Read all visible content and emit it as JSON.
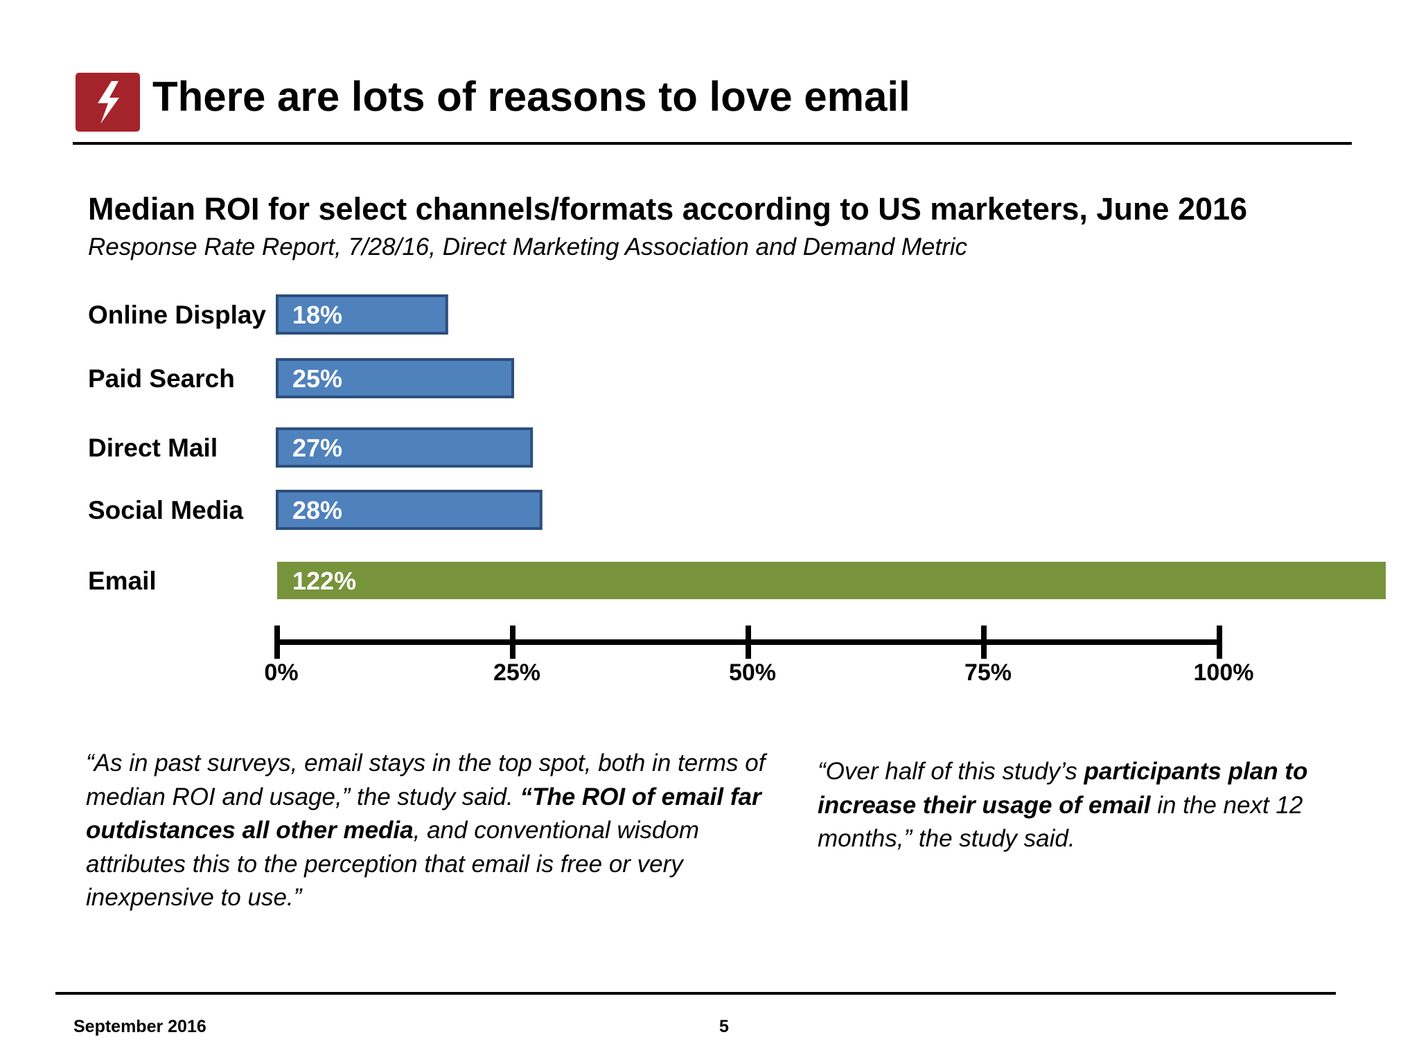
{
  "slide": {
    "title": "There are lots of reasons to love email",
    "logo_icon": "lightning-bolt-icon",
    "accent_color": "#a5232b"
  },
  "chart_data": {
    "type": "bar",
    "orientation": "horizontal",
    "title": "Median ROI for select channels/formats according to US marketers, June 2016",
    "subtitle": "Response Rate Report, 7/28/16, Direct Marketing Association and Demand Metric",
    "categories": [
      "Online Display",
      "Paid Search",
      "Direct Mail",
      "Social Media",
      "Email"
    ],
    "values": [
      18,
      25,
      27,
      28,
      122
    ],
    "value_labels": [
      "18%",
      "25%",
      "27%",
      "28%",
      "122%"
    ],
    "colors": [
      "#4f81bd",
      "#4f81bd",
      "#4f81bd",
      "#4f81bd",
      "#77933c"
    ],
    "xticks": [
      0,
      25,
      50,
      75,
      100
    ],
    "xtick_labels": [
      "0%",
      "25%",
      "50%",
      "75%",
      "100%"
    ],
    "grid": false,
    "legend": "none"
  },
  "quotes": {
    "left": {
      "p1": "“As in past surveys, email stays in the top spot, both in terms of median ROI and usage,” the study said. ",
      "b1": "“The ROI of email far outdistances all other media",
      "p2": ", and conventional wisdom attributes this to the perception that email is free or very inexpensive to use.”"
    },
    "right": {
      "p1": "“Over half of this study’s ",
      "b1": "participants plan to increase their usage of email",
      "p2": " in the next 12 months,” the study said."
    }
  },
  "footer": {
    "date": "September 2016",
    "page": "5"
  }
}
